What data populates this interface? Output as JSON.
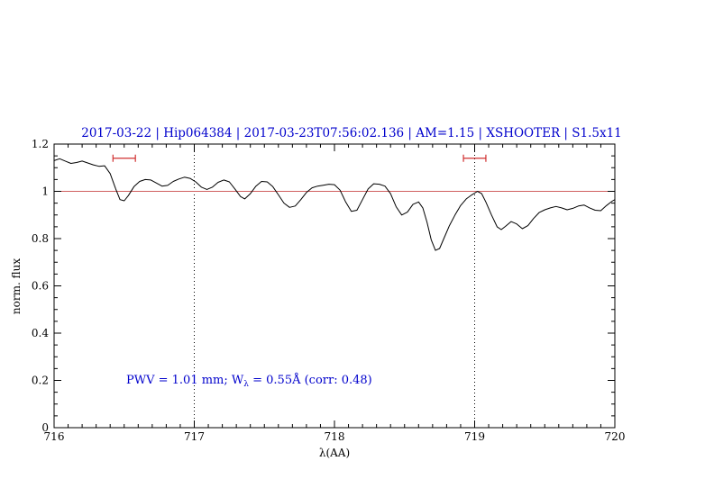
{
  "chart_data": {
    "type": "line",
    "title": "2017-03-22 | Hip064384 | 2017-03-23T07:56:02.136 | AM=1.15 | XSHOOTER | S1.5x11",
    "title_color": "#0000cc",
    "axes": {
      "xlabel": "λ(AA)",
      "ylabel": "norm. flux",
      "xlim": [
        716,
        720
      ],
      "ylim": [
        0,
        1.2
      ],
      "xticks": {
        "values": [
          716,
          717,
          718,
          719,
          720
        ],
        "labels": [
          "716",
          "717",
          "718",
          "719",
          "720"
        ]
      },
      "yticks": {
        "values": [
          0,
          0.2,
          0.4,
          0.6,
          0.8,
          1,
          1.2
        ],
        "labels": [
          "0",
          "0.2",
          "0.4",
          "0.6",
          "0.8",
          "1",
          "1.2"
        ]
      },
      "x_minor_step": 0.1,
      "y_minor_step": 0.05,
      "grid": "off",
      "box": "on"
    },
    "annotation": {
      "pre": "PWV = 1.01 mm; W",
      "sub": "λ",
      "post": " = 0.55Å (corr: 0.48)",
      "color": "#0000cc"
    },
    "reference_line": {
      "y": 1.0,
      "color": "#d06060"
    },
    "dotted_vlines": {
      "x": [
        717,
        719
      ],
      "color": "#000000"
    },
    "band_markers": [
      {
        "x1": 716.42,
        "x2": 716.58,
        "y": 1.14,
        "color": "#d03030"
      },
      {
        "x1": 718.92,
        "x2": 719.08,
        "y": 1.14,
        "color": "#d03030"
      }
    ],
    "series": [
      {
        "name": "normalized spectrum",
        "color": "#000000",
        "points": [
          [
            716.0,
            1.13
          ],
          [
            716.04,
            1.138
          ],
          [
            716.08,
            1.128
          ],
          [
            716.12,
            1.118
          ],
          [
            716.16,
            1.122
          ],
          [
            716.2,
            1.128
          ],
          [
            716.24,
            1.12
          ],
          [
            716.28,
            1.112
          ],
          [
            716.32,
            1.106
          ],
          [
            716.36,
            1.108
          ],
          [
            716.4,
            1.075
          ],
          [
            716.44,
            1.01
          ],
          [
            716.47,
            0.965
          ],
          [
            716.5,
            0.96
          ],
          [
            716.53,
            0.982
          ],
          [
            716.57,
            1.02
          ],
          [
            716.61,
            1.042
          ],
          [
            716.65,
            1.05
          ],
          [
            716.69,
            1.048
          ],
          [
            716.73,
            1.035
          ],
          [
            716.77,
            1.022
          ],
          [
            716.81,
            1.025
          ],
          [
            716.85,
            1.042
          ],
          [
            716.89,
            1.052
          ],
          [
            716.93,
            1.06
          ],
          [
            716.97,
            1.055
          ],
          [
            717.01,
            1.04
          ],
          [
            717.05,
            1.018
          ],
          [
            717.09,
            1.008
          ],
          [
            717.13,
            1.018
          ],
          [
            717.17,
            1.038
          ],
          [
            717.21,
            1.048
          ],
          [
            717.25,
            1.04
          ],
          [
            717.29,
            1.01
          ],
          [
            717.33,
            0.978
          ],
          [
            717.36,
            0.968
          ],
          [
            717.4,
            0.99
          ],
          [
            717.44,
            1.022
          ],
          [
            717.48,
            1.042
          ],
          [
            717.52,
            1.04
          ],
          [
            717.56,
            1.02
          ],
          [
            717.6,
            0.985
          ],
          [
            717.64,
            0.95
          ],
          [
            717.68,
            0.932
          ],
          [
            717.72,
            0.938
          ],
          [
            717.76,
            0.965
          ],
          [
            717.8,
            0.995
          ],
          [
            717.84,
            1.015
          ],
          [
            717.88,
            1.022
          ],
          [
            717.92,
            1.026
          ],
          [
            717.96,
            1.03
          ],
          [
            718.0,
            1.028
          ],
          [
            718.04,
            1.005
          ],
          [
            718.08,
            0.955
          ],
          [
            718.12,
            0.915
          ],
          [
            718.16,
            0.92
          ],
          [
            718.2,
            0.965
          ],
          [
            718.24,
            1.01
          ],
          [
            718.28,
            1.032
          ],
          [
            718.32,
            1.03
          ],
          [
            718.36,
            1.022
          ],
          [
            718.4,
            0.99
          ],
          [
            718.44,
            0.935
          ],
          [
            718.48,
            0.9
          ],
          [
            718.52,
            0.912
          ],
          [
            718.56,
            0.945
          ],
          [
            718.6,
            0.955
          ],
          [
            718.63,
            0.93
          ],
          [
            718.66,
            0.87
          ],
          [
            718.69,
            0.795
          ],
          [
            718.72,
            0.75
          ],
          [
            718.75,
            0.758
          ],
          [
            718.78,
            0.8
          ],
          [
            718.82,
            0.855
          ],
          [
            718.86,
            0.9
          ],
          [
            718.9,
            0.94
          ],
          [
            718.94,
            0.968
          ],
          [
            718.98,
            0.985
          ],
          [
            719.02,
            1.0
          ],
          [
            719.05,
            0.99
          ],
          [
            719.08,
            0.955
          ],
          [
            719.12,
            0.9
          ],
          [
            719.16,
            0.85
          ],
          [
            719.19,
            0.838
          ],
          [
            719.22,
            0.852
          ],
          [
            719.26,
            0.872
          ],
          [
            719.3,
            0.862
          ],
          [
            719.34,
            0.842
          ],
          [
            719.38,
            0.855
          ],
          [
            719.42,
            0.885
          ],
          [
            719.46,
            0.91
          ],
          [
            719.5,
            0.922
          ],
          [
            719.54,
            0.93
          ],
          [
            719.58,
            0.936
          ],
          [
            719.62,
            0.93
          ],
          [
            719.66,
            0.922
          ],
          [
            719.7,
            0.928
          ],
          [
            719.74,
            0.938
          ],
          [
            719.78,
            0.942
          ],
          [
            719.82,
            0.93
          ],
          [
            719.86,
            0.92
          ],
          [
            719.9,
            0.918
          ],
          [
            719.94,
            0.94
          ],
          [
            719.98,
            0.958
          ],
          [
            720.0,
            0.965
          ]
        ]
      }
    ]
  }
}
